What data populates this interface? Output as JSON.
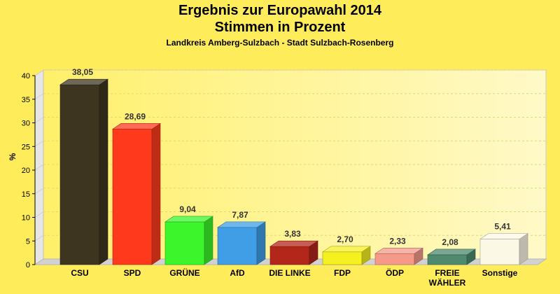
{
  "chart_data": {
    "type": "bar",
    "title": "Ergebnis zur Europawahl 2014",
    "subtitle": "Stimmen in Prozent",
    "caption": "Landkreis Amberg-Sulzbach - Stadt Sulzbach-Rosenberg",
    "ylabel": "%",
    "xlabel": "",
    "ylim": [
      0,
      40
    ],
    "yticks": [
      0,
      5,
      10,
      15,
      20,
      25,
      30,
      35,
      40
    ],
    "grid": true,
    "categories": [
      "CSU",
      "SPD",
      "GRÜNE",
      "AfD",
      "DIE LINKE",
      "FDP",
      "ÖDP",
      "FREIE WÄHLER",
      "Sonstige"
    ],
    "category_lines": [
      [
        "CSU"
      ],
      [
        "SPD"
      ],
      [
        "GRÜNE"
      ],
      [
        "AfD"
      ],
      [
        "DIE LINKE"
      ],
      [
        "FDP"
      ],
      [
        "ÖDP"
      ],
      [
        "FREIE",
        "WÄHLER"
      ],
      [
        "Sonstige"
      ]
    ],
    "values": [
      38.05,
      28.69,
      9.04,
      7.87,
      3.83,
      2.7,
      2.33,
      2.08,
      5.41
    ],
    "value_labels": [
      "38,05",
      "28,69",
      "9,04",
      "7,87",
      "3,83",
      "2,70",
      "2,33",
      "2,08",
      "5,41"
    ],
    "colors": [
      "#3d3520",
      "#ff3a1c",
      "#3cf52a",
      "#3f9ee6",
      "#b3261a",
      "#f5f020",
      "#f59a8a",
      "#4f8a6e",
      "#fcf8e6"
    ]
  }
}
